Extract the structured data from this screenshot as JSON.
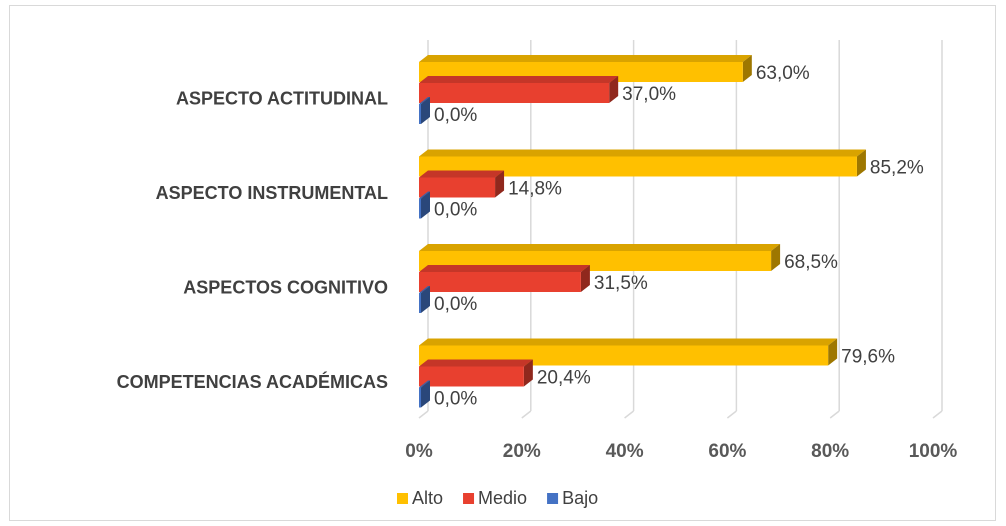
{
  "chart_data": {
    "type": "bar3d-horizontal",
    "categories": [
      "ASPECTO ACTITUDINAL",
      "ASPECTO INSTRUMENTAL",
      "ASPECTOS COGNITIVO",
      "COMPETENCIAS ACADÉMICAS"
    ],
    "series": [
      {
        "name": "Alto",
        "color": "#ffc000",
        "values": [
          63.0,
          85.2,
          68.5,
          79.6
        ],
        "value_labels": [
          "63,0%",
          "85,2%",
          "68,5%",
          "79,6%"
        ]
      },
      {
        "name": "Medio",
        "color": "#e8402f",
        "values": [
          37.0,
          14.8,
          31.5,
          20.4
        ],
        "value_labels": [
          "37,0%",
          "14,8%",
          "31,5%",
          "20,4%"
        ]
      },
      {
        "name": "Bajo",
        "color": "#4472c4",
        "values": [
          0.0,
          0.0,
          0.0,
          0.0
        ],
        "value_labels": [
          "0,0%",
          "0,0%",
          "0,0%",
          "0,0%"
        ]
      }
    ],
    "xlim": [
      0,
      100
    ],
    "xticks": [
      {
        "value": 0,
        "label": "0%"
      },
      {
        "value": 20,
        "label": "20%"
      },
      {
        "value": 40,
        "label": "40%"
      },
      {
        "value": 60,
        "label": "60%"
      },
      {
        "value": 80,
        "label": "80%"
      },
      {
        "value": 100,
        "label": "100%"
      }
    ],
    "grid": true,
    "legend": "bottom"
  }
}
